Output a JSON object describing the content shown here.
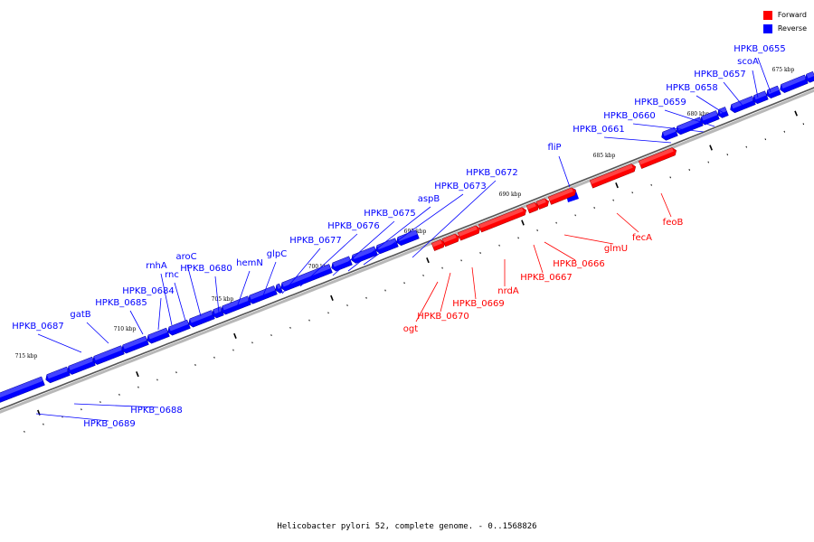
{
  "colors": {
    "forward": "#ff0000",
    "reverse": "#0000ff",
    "axis": "#555555"
  },
  "legend": [
    {
      "label": "Forward",
      "color": "#ff0000"
    },
    {
      "label": "Reverse",
      "color": "#0000ff"
    }
  ],
  "caption": "Helicobacter pylori 52, complete genome. - 0..1568826",
  "ticks": [
    "675 kbp",
    "680 kbp",
    "685 kbp",
    "690 kbp",
    "695 kbp",
    "700 kbp",
    "705 kbp",
    "710 kbp",
    "715 kbp"
  ],
  "genes_reverse": [
    "HPKB_0655",
    "scoA",
    "HPKB_0657",
    "HPKB_0658",
    "HPKB_0659",
    "HPKB_0660",
    "HPKB_0661",
    "fliP",
    "HPKB_0672",
    "HPKB_0673",
    "aspB",
    "HPKB_0675",
    "HPKB_0676",
    "HPKB_0677",
    "glpC",
    "hemN",
    "HPKB_0680",
    "aroC",
    "rnc",
    "rnhA",
    "HPKB_0684",
    "HPKB_0685",
    "gatB",
    "HPKB_0687",
    "HPKB_0688",
    "HPKB_0689"
  ],
  "genes_forward": [
    "feoB",
    "fecA",
    "glmU",
    "HPKB_0666",
    "HPKB_0667",
    "nrdA",
    "HPKB_0669",
    "HPKB_0670",
    "ogt"
  ]
}
